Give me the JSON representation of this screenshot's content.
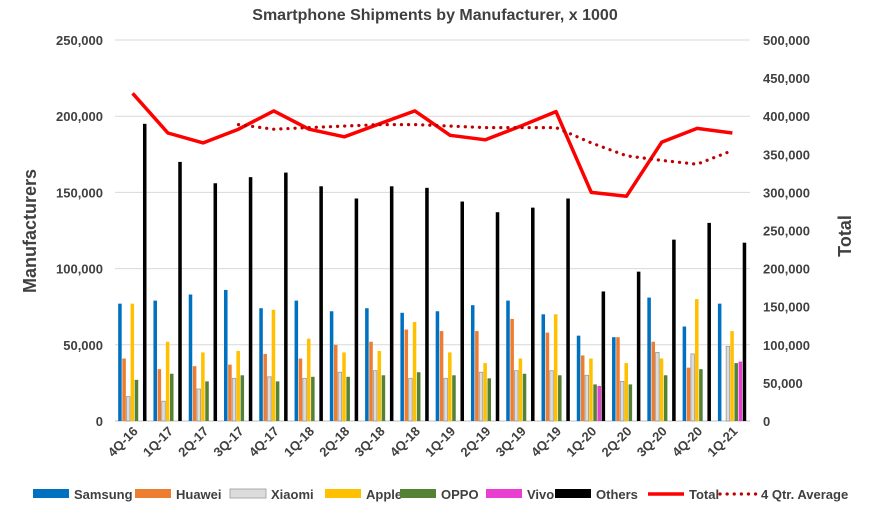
{
  "chart_data": {
    "type": "bar",
    "title": "Smartphone Shipments by Manufacturer, x 1000",
    "ylabel": "Manufacturers",
    "y2label": "Total",
    "ylim": [
      0,
      250000
    ],
    "y2lim": [
      0,
      500000
    ],
    "yticks": [
      "0",
      "50,000",
      "100,000",
      "150,000",
      "200,000",
      "250,000"
    ],
    "y2ticks": [
      "0",
      "50,000",
      "100,000",
      "150,000",
      "200,000",
      "250,000",
      "300,000",
      "350,000",
      "400,000",
      "450,000",
      "500,000"
    ],
    "grid": true,
    "legend_position": "bottom",
    "categories": [
      "4Q-16",
      "1Q-17",
      "2Q-17",
      "3Q-17",
      "4Q-17",
      "1Q-18",
      "2Q-18",
      "3Q-18",
      "4Q-18",
      "1Q-19",
      "2Q-19",
      "3Q-19",
      "4Q-19",
      "1Q-20",
      "2Q-20",
      "3Q-20",
      "4Q-20",
      "1Q-21"
    ],
    "series": [
      {
        "name": "Samsung",
        "color": "#0070c0",
        "type": "bar",
        "axis": "left",
        "values": [
          77000,
          79000,
          83000,
          86000,
          74000,
          79000,
          72000,
          74000,
          71000,
          72000,
          76000,
          79000,
          70000,
          56000,
          55000,
          81000,
          62000,
          77000
        ]
      },
      {
        "name": "Huawei",
        "color": "#ed7d31",
        "type": "bar",
        "axis": "left",
        "values": [
          41000,
          34000,
          36000,
          37000,
          44000,
          41000,
          50000,
          52000,
          60000,
          59000,
          59000,
          67000,
          58000,
          43000,
          55000,
          52000,
          35000,
          0
        ]
      },
      {
        "name": "Xiaomi",
        "color": "#dcdcdc",
        "type": "bar",
        "axis": "left",
        "values": [
          16000,
          13000,
          21000,
          28000,
          29000,
          28000,
          32000,
          33000,
          28000,
          28000,
          32000,
          33000,
          33000,
          30000,
          26000,
          45000,
          44000,
          49000
        ]
      },
      {
        "name": "Apple",
        "color": "#ffc000",
        "type": "bar",
        "axis": "left",
        "values": [
          77000,
          52000,
          45000,
          46000,
          73000,
          54000,
          45000,
          46000,
          65000,
          45000,
          38000,
          41000,
          70000,
          41000,
          38000,
          41000,
          80000,
          59000
        ]
      },
      {
        "name": "OPPO",
        "color": "#548235",
        "type": "bar",
        "axis": "left",
        "values": [
          27000,
          31000,
          26000,
          30000,
          26000,
          29000,
          29000,
          30000,
          32000,
          30000,
          28000,
          31000,
          30000,
          24000,
          24000,
          30000,
          34000,
          38000
        ]
      },
      {
        "name": "Vivo",
        "color": "#e83ed2",
        "type": "bar",
        "axis": "left",
        "values": [
          0,
          0,
          0,
          0,
          0,
          0,
          0,
          0,
          0,
          0,
          0,
          0,
          0,
          23000,
          0,
          0,
          0,
          39000
        ]
      },
      {
        "name": "Others",
        "color": "#000000",
        "type": "bar",
        "axis": "left",
        "values": [
          195000,
          170000,
          156000,
          160000,
          163000,
          154000,
          146000,
          154000,
          153000,
          144000,
          137000,
          140000,
          146000,
          85000,
          98000,
          119000,
          130000,
          117000
        ]
      },
      {
        "name": "Total",
        "color": "#ff0000",
        "type": "line",
        "style": "solid",
        "axis": "right",
        "values": [
          430000,
          378000,
          365000,
          383000,
          407000,
          383000,
          373000,
          390000,
          407000,
          375000,
          369000,
          387000,
          406000,
          300000,
          295000,
          366000,
          384000,
          378000
        ]
      },
      {
        "name": "4 Qtr. Average",
        "color": "#c00000",
        "type": "line",
        "style": "dotted",
        "axis": "right",
        "values": [
          null,
          null,
          null,
          389000,
          383000,
          385000,
          387000,
          389000,
          389000,
          387000,
          385000,
          385000,
          385000,
          365000,
          348000,
          342000,
          337000,
          355000
        ]
      }
    ]
  }
}
